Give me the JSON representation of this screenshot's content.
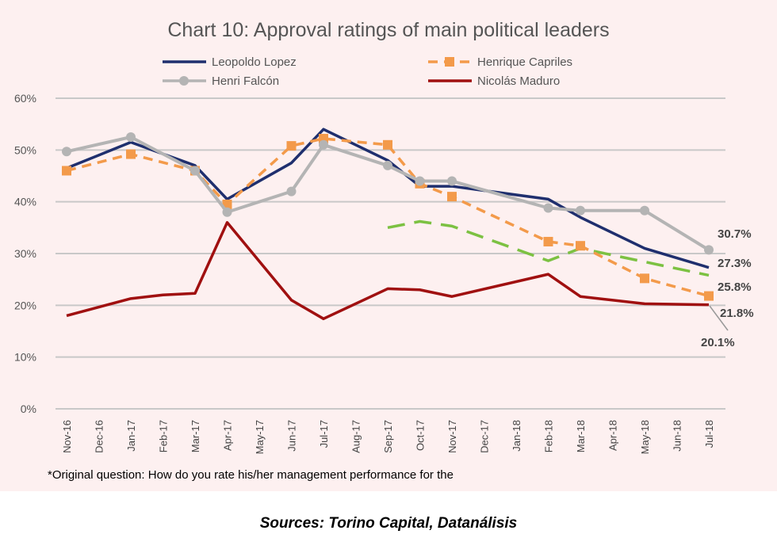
{
  "chart_data": {
    "type": "line",
    "title": "Chart 10: Approval ratings of main political leaders",
    "footnote": "*Original question: How do you rate his/her management performance for the",
    "categories": [
      "Nov-16",
      "Dec-16",
      "Jan-17",
      "Feb-17",
      "Mar-17",
      "Apr-17",
      "May-17",
      "Jun-17",
      "Jul-17",
      "Aug-17",
      "Sep-17",
      "Oct-17",
      "Nov-17",
      "Dec-17",
      "Jan-18",
      "Feb-18",
      "Mar-18",
      "Apr-18",
      "May-18",
      "Jun-18",
      "Jul-18"
    ],
    "y_ticks": [
      "0%",
      "10%",
      "20%",
      "30%",
      "40%",
      "50%",
      "60%"
    ],
    "ylim": [
      0,
      60
    ],
    "grid": true,
    "legend_placement": "top",
    "series": [
      {
        "name": "Leopoldo Lopez",
        "color": "#1f2f6e",
        "style": "solid",
        "marker": "none",
        "values": [
          46.5,
          null,
          51.5,
          null,
          47,
          40.5,
          null,
          47.5,
          54,
          null,
          48,
          43,
          43,
          null,
          null,
          40.5,
          37,
          null,
          31,
          null,
          27.3
        ]
      },
      {
        "name": "Henrique Capriles",
        "color": "#f39a4a",
        "style": "dashed",
        "marker": "square",
        "values": [
          46,
          null,
          49.2,
          null,
          46,
          39.5,
          null,
          50.8,
          52.2,
          null,
          51,
          43.5,
          41,
          null,
          null,
          32.3,
          31.5,
          null,
          25.2,
          null,
          21.8
        ]
      },
      {
        "name": "Henri Falcón",
        "color": "#b4b4b4",
        "style": "solid",
        "marker": "circle",
        "values": [
          49.7,
          null,
          52.5,
          null,
          46,
          38,
          null,
          42,
          51,
          null,
          47,
          44,
          44,
          null,
          null,
          38.8,
          38.3,
          null,
          38.3,
          null,
          30.7
        ]
      },
      {
        "name": "Nicolás Maduro",
        "color": "#a01010",
        "style": "solid",
        "marker": "none",
        "values": [
          18,
          null,
          21.3,
          22,
          22.3,
          36,
          null,
          21,
          17.4,
          null,
          23.2,
          23,
          21.7,
          null,
          null,
          26,
          21.7,
          null,
          20.3,
          null,
          20.1
        ]
      },
      {
        "color": "#7cc142",
        "style": "dashed",
        "marker": "none",
        "values": [
          null,
          null,
          null,
          null,
          null,
          null,
          null,
          null,
          null,
          null,
          35,
          36.2,
          35.3,
          null,
          null,
          28.6,
          31,
          null,
          null,
          null,
          25.8
        ]
      }
    ],
    "end_labels": [
      "30.7%",
      "27.3%",
      "25.8%",
      "21.8%",
      "20.1%"
    ]
  },
  "sources": "Sources: Torino Capital, Datanálisis"
}
